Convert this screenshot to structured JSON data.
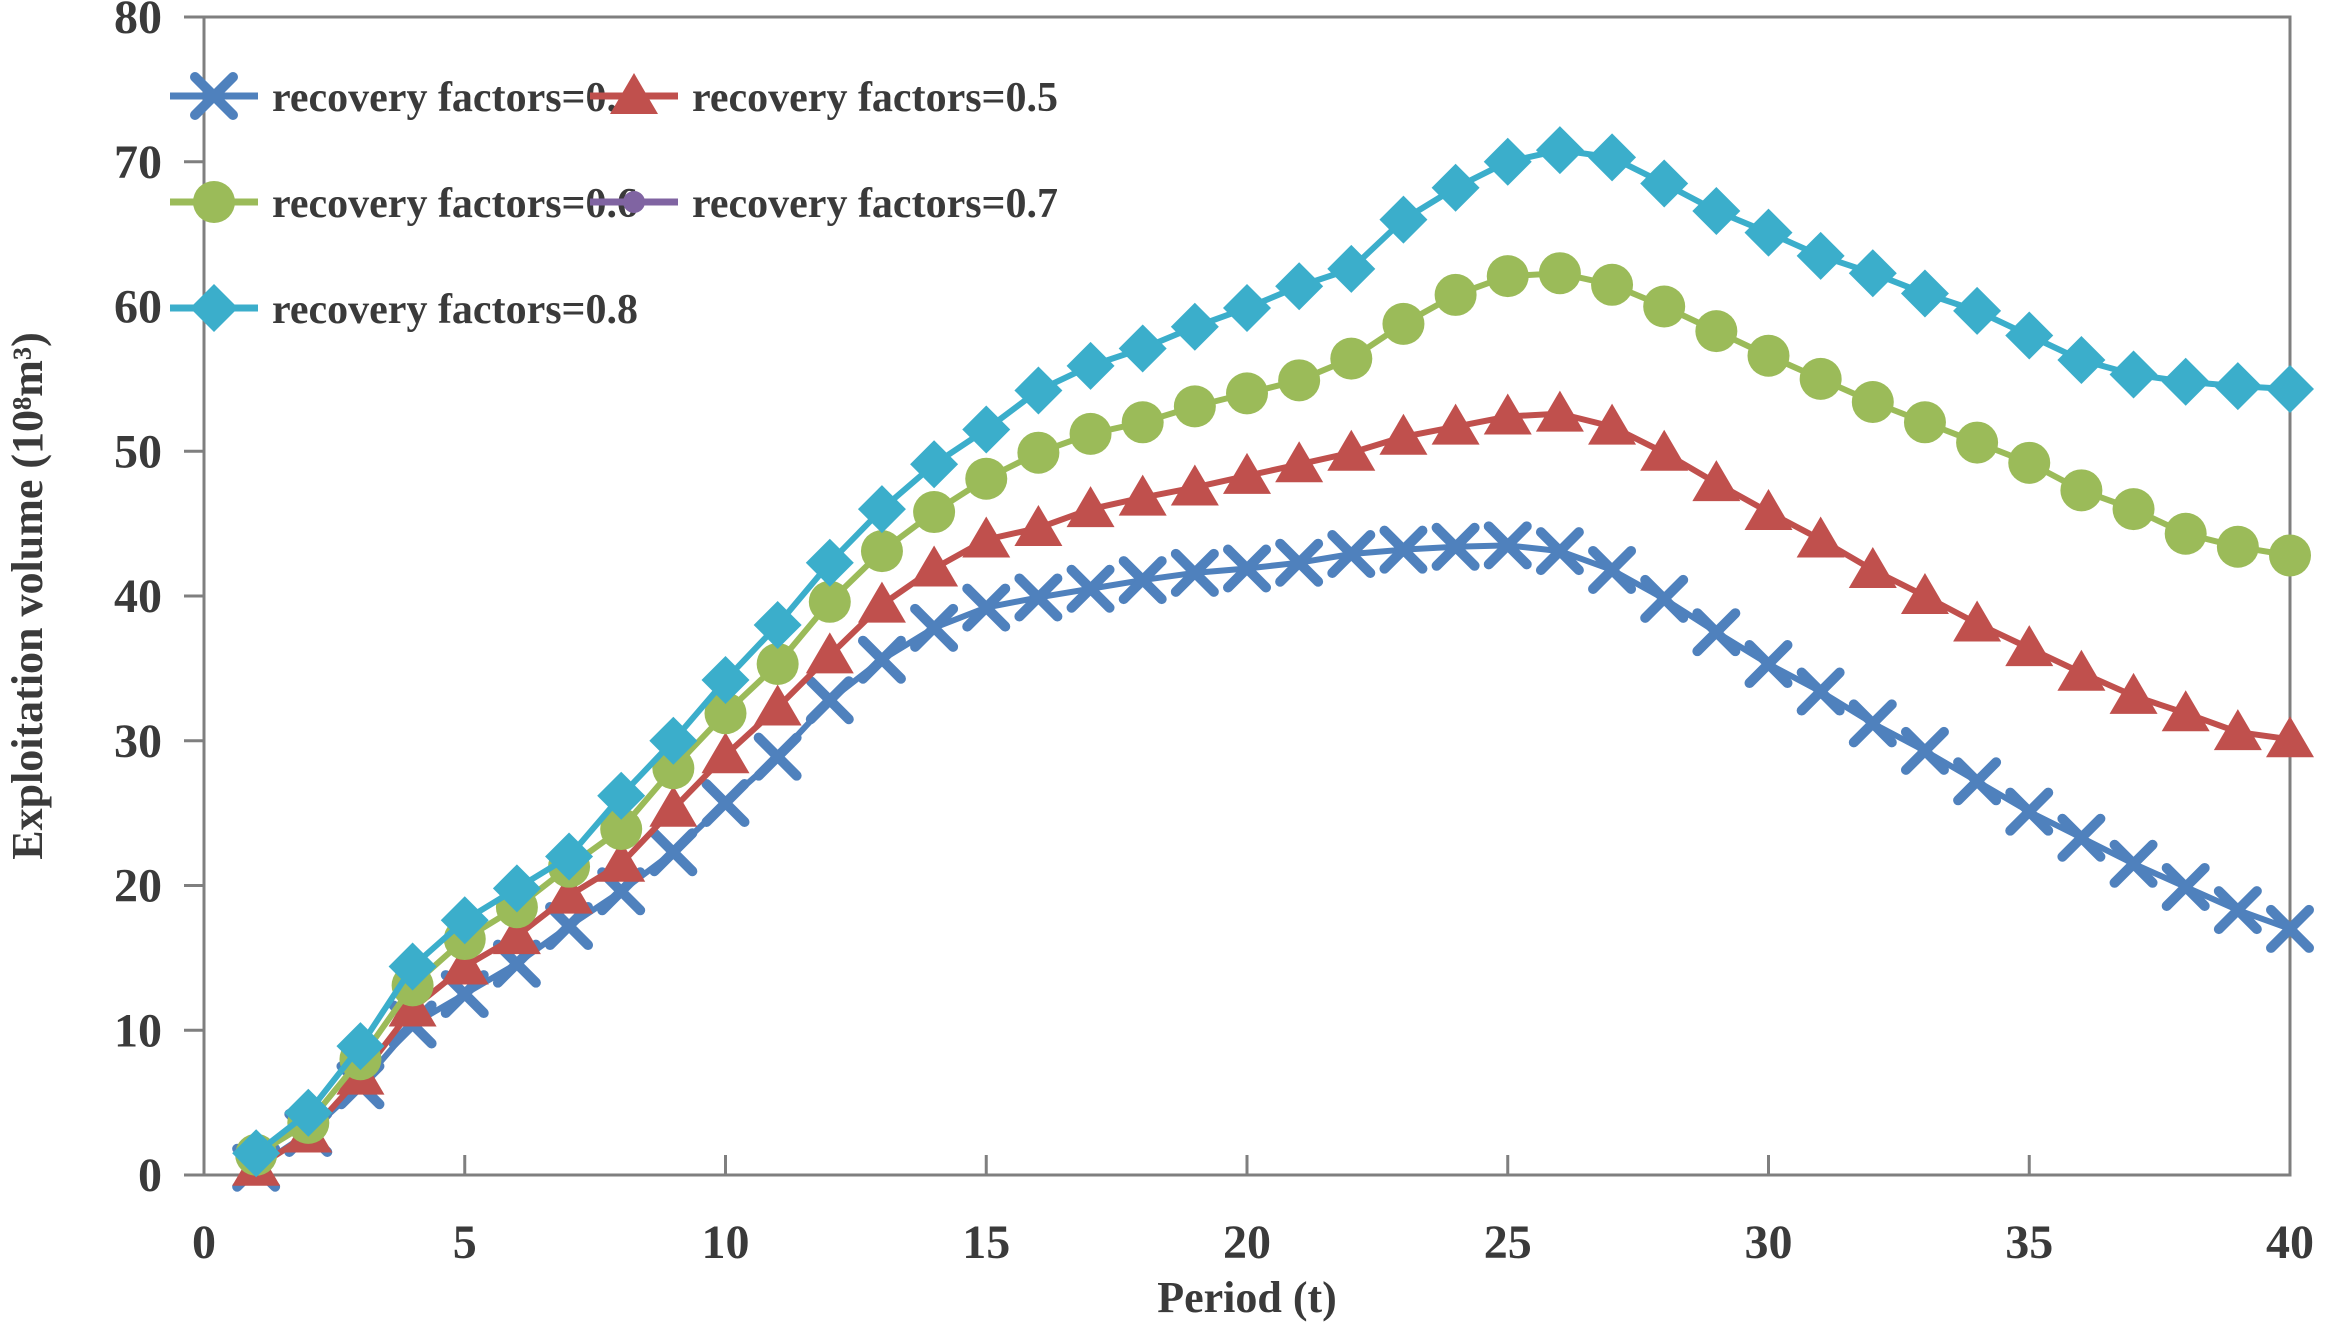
{
  "figure": {
    "background": "#ffffff",
    "axis_color": "#7f7f7f",
    "text_color": "#3a3a3a"
  },
  "chart_data": {
    "type": "line",
    "title": "",
    "xlabel": "Period (t)",
    "ylabel": "Exploitation volume (10⁸m³)",
    "xlim": [
      0,
      40
    ],
    "ylim": [
      0,
      80
    ],
    "x_ticks": [
      0,
      5,
      10,
      15,
      20,
      25,
      30,
      35,
      40
    ],
    "y_ticks": [
      0,
      10,
      20,
      30,
      40,
      50,
      60,
      70,
      80
    ],
    "grid": false,
    "legend_position": "inside top-left, two columns, no border",
    "x": [
      1,
      2,
      3,
      4,
      5,
      6,
      7,
      8,
      9,
      10,
      11,
      12,
      13,
      14,
      15,
      16,
      17,
      18,
      19,
      20,
      21,
      22,
      23,
      24,
      25,
      26,
      27,
      28,
      29,
      30,
      31,
      32,
      33,
      34,
      35,
      36,
      37,
      38,
      39,
      40
    ],
    "series": [
      {
        "name": "recovery factors=0.4",
        "color": "#4F81BD",
        "marker": "x",
        "values": [
          0.5,
          2.9,
          6.2,
          10.4,
          12.5,
          14.6,
          17.2,
          19.6,
          22.3,
          25.7,
          28.9,
          32.8,
          35.6,
          37.8,
          39.2,
          39.9,
          40.5,
          41.1,
          41.6,
          41.9,
          42.3,
          42.9,
          43.2,
          43.4,
          43.5,
          43.1,
          41.8,
          39.8,
          37.5,
          35.3,
          33.4,
          31.2,
          29.3,
          27.2,
          25.1,
          23.3,
          21.5,
          19.9,
          18.3,
          17.0
        ]
      },
      {
        "name": "recovery factors=0.5",
        "color": "#C0504D",
        "marker": "triangle",
        "values": [
          0.5,
          2.8,
          6.8,
          11.5,
          14.4,
          16.5,
          19.3,
          21.5,
          25.3,
          29.0,
          32.3,
          35.9,
          39.4,
          41.9,
          43.9,
          44.7,
          46.0,
          46.8,
          47.5,
          48.3,
          49.1,
          49.9,
          51.0,
          51.7,
          52.4,
          52.6,
          51.7,
          49.9,
          47.8,
          45.8,
          43.9,
          41.8,
          40.0,
          38.1,
          36.4,
          34.7,
          33.1,
          31.9,
          30.6,
          30.1
        ]
      },
      {
        "name": "recovery factors=0.6",
        "color": "#9BBB59",
        "marker": "circle",
        "values": [
          1.4,
          3.6,
          8.0,
          13.1,
          16.3,
          18.5,
          21.3,
          23.9,
          28.1,
          31.9,
          35.3,
          39.6,
          43.1,
          45.8,
          48.1,
          49.9,
          51.2,
          52.0,
          53.1,
          54.0,
          54.9,
          56.4,
          58.8,
          60.8,
          62.1,
          62.3,
          61.5,
          60.0,
          58.3,
          56.6,
          55.0,
          53.4,
          52.0,
          50.6,
          49.2,
          47.3,
          46.0,
          44.3,
          43.4,
          42.8
        ]
      },
      {
        "name": "recovery factors=0.7",
        "color": "#8064A2",
        "marker": "dot",
        "values": [],
        "note": "legend entry only — curve not visibly distinct in the plot (hidden/overlapping)"
      },
      {
        "name": "recovery factors=0.8",
        "color": "#3BAECB",
        "marker": "diamond",
        "values": [
          1.5,
          4.3,
          8.9,
          14.4,
          17.6,
          19.8,
          22.0,
          26.2,
          30.0,
          34.2,
          38.0,
          42.3,
          46.0,
          49.1,
          51.5,
          54.2,
          55.9,
          57.1,
          58.6,
          59.9,
          61.4,
          62.6,
          66.0,
          68.2,
          70.0,
          70.8,
          70.3,
          68.5,
          66.6,
          65.1,
          63.5,
          62.3,
          60.9,
          59.7,
          58.0,
          56.3,
          55.3,
          54.8,
          54.5,
          54.3
        ]
      }
    ]
  }
}
